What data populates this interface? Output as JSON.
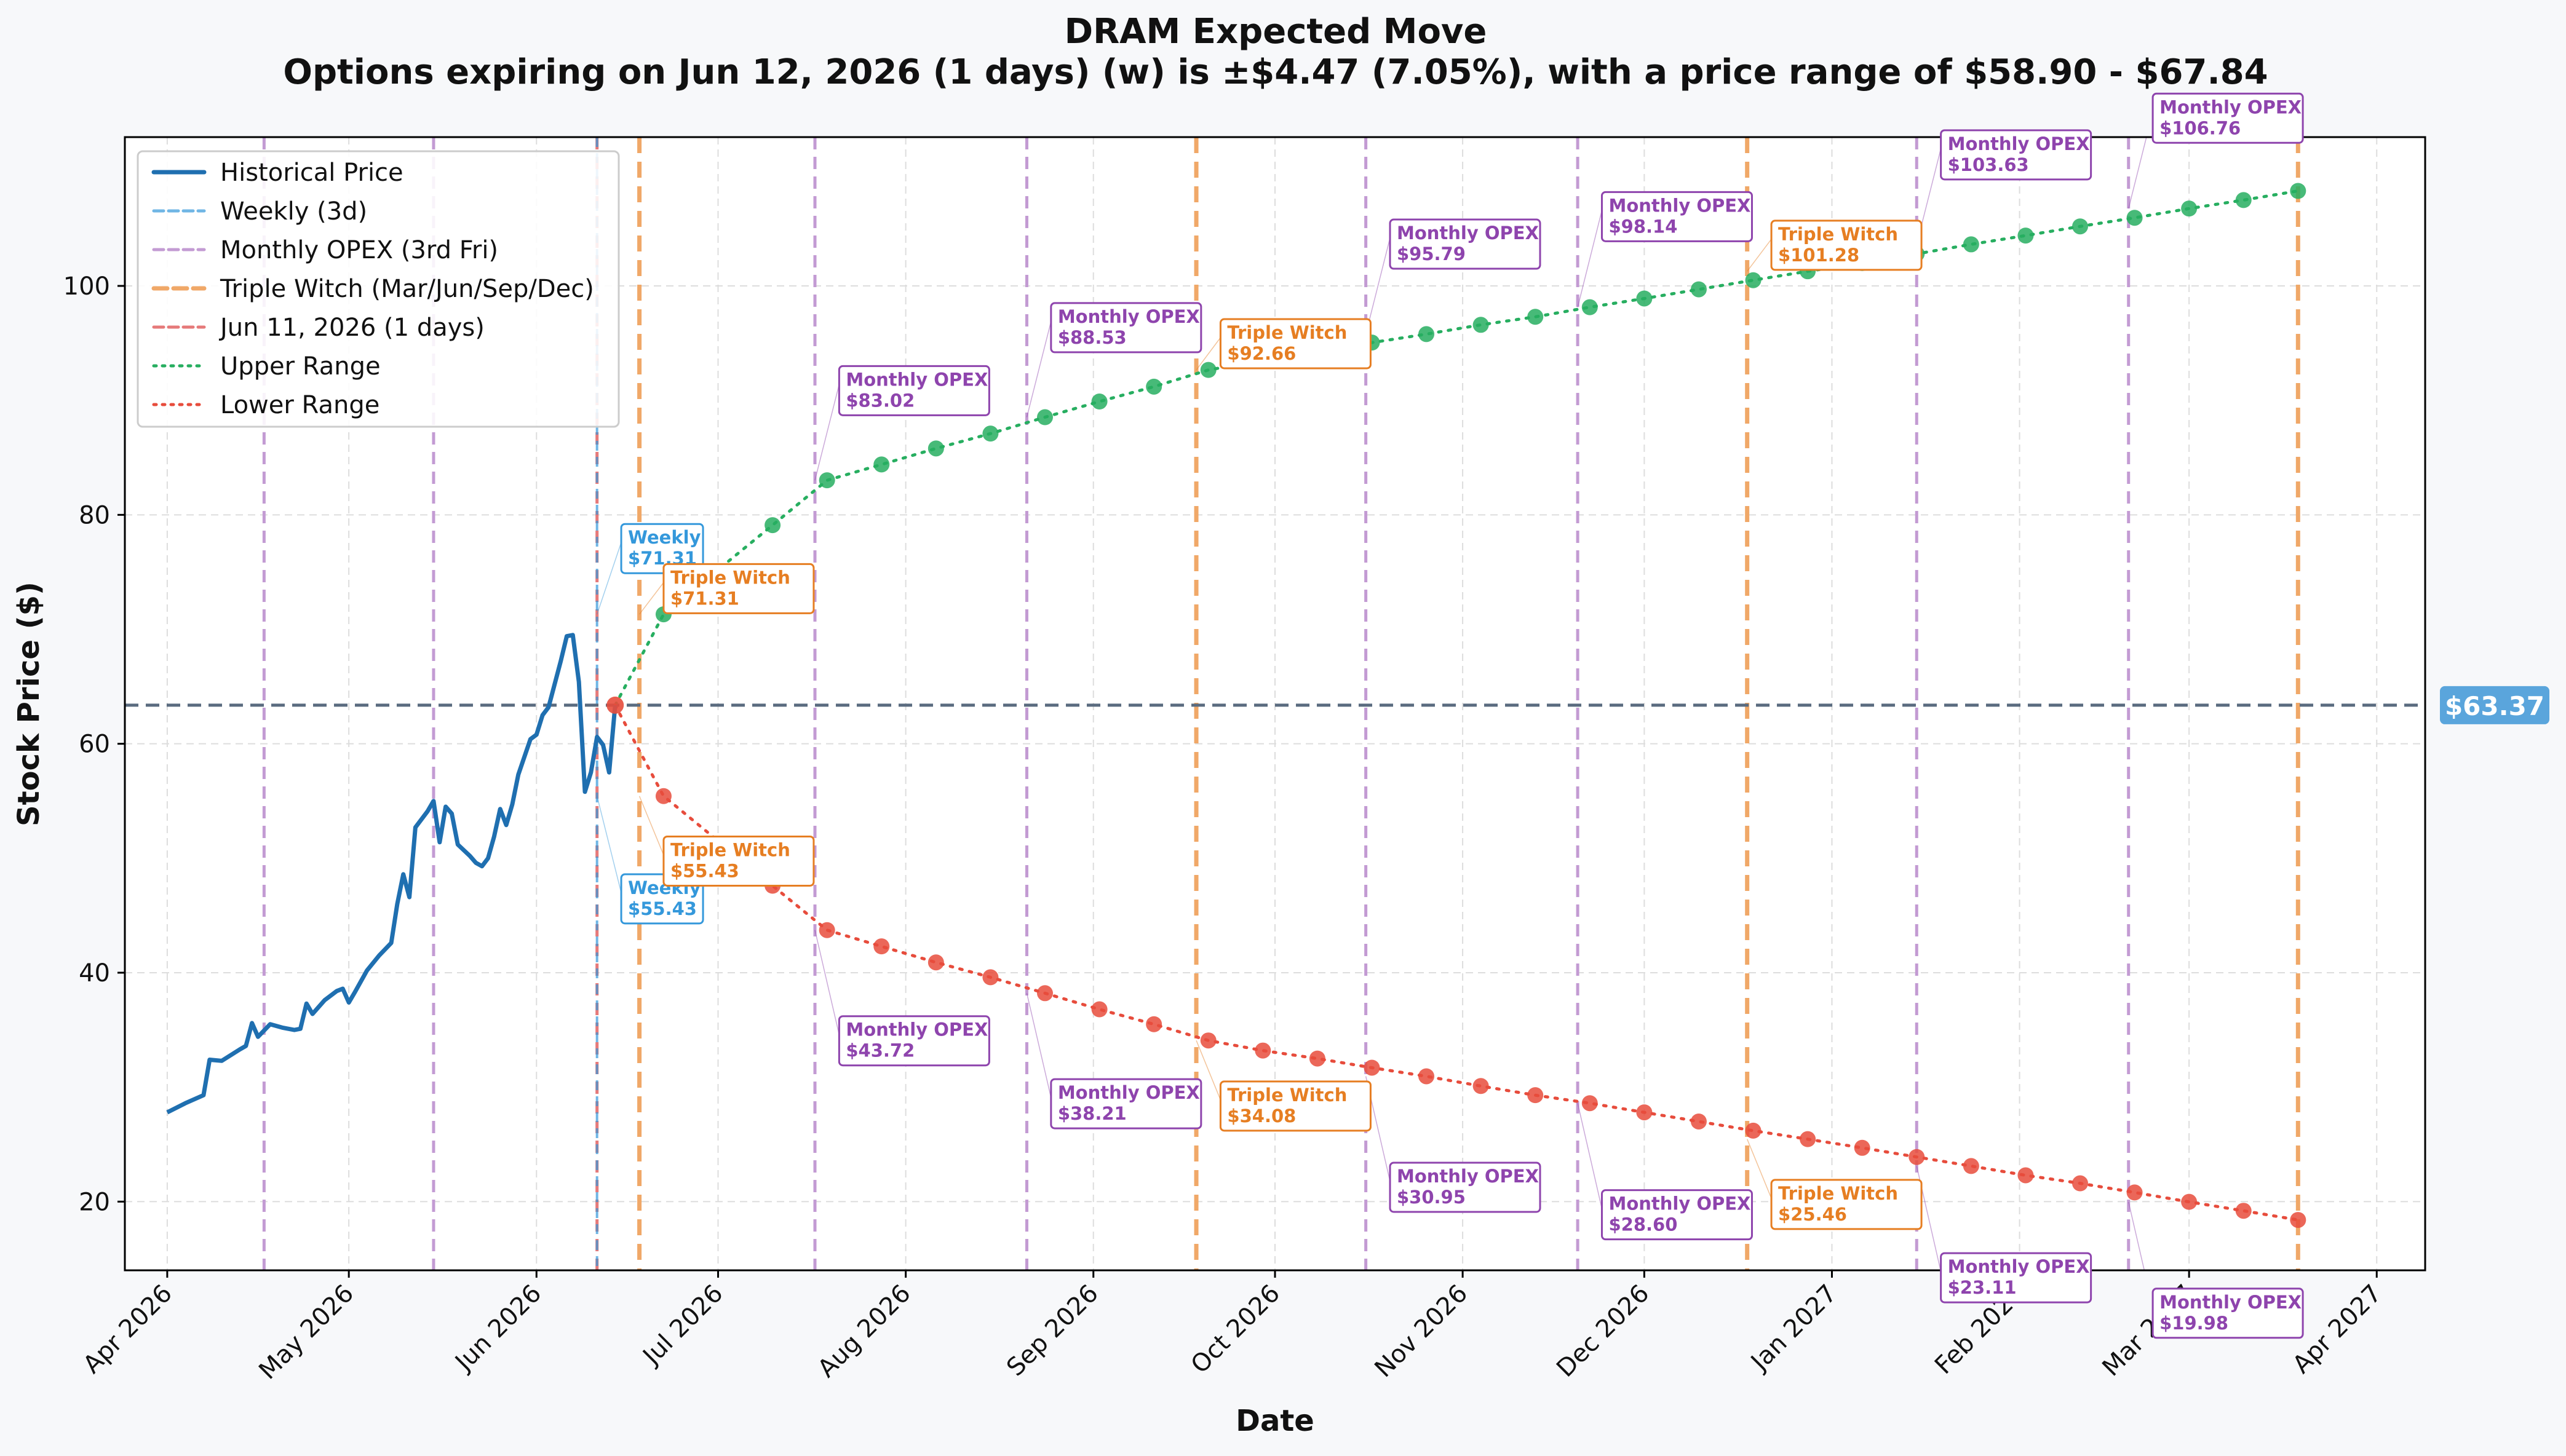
{
  "chart_data": {
    "type": "line",
    "title": "DRAM Expected Move",
    "subtitle": "Options expiring on Jun 12, 2026 (1 days) (w) is ±$4.47 (7.05%), with a price range of $58.90 - $67.84",
    "xlabel": "Date",
    "ylabel": "Stock Price ($)",
    "x_range": [
      "2026-03-25",
      "2027-04-09"
    ],
    "ylim": [
      14,
      113
    ],
    "y_ticks": [
      20,
      40,
      60,
      80,
      100
    ],
    "x_ticks": [
      {
        "date": "2026-04-01",
        "label": "Apr 2026"
      },
      {
        "date": "2026-05-01",
        "label": "May 2026"
      },
      {
        "date": "2026-06-01",
        "label": "Jun 2026"
      },
      {
        "date": "2026-07-01",
        "label": "Jul 2026"
      },
      {
        "date": "2026-08-01",
        "label": "Aug 2026"
      },
      {
        "date": "2026-09-01",
        "label": "Sep 2026"
      },
      {
        "date": "2026-10-01",
        "label": "Oct 2026"
      },
      {
        "date": "2026-11-01",
        "label": "Nov 2026"
      },
      {
        "date": "2026-12-01",
        "label": "Dec 2026"
      },
      {
        "date": "2027-01-01",
        "label": "Jan 2027"
      },
      {
        "date": "2027-02-01",
        "label": "Feb 2027"
      },
      {
        "date": "2027-03-01",
        "label": "Mar 2027"
      },
      {
        "date": "2027-04-01",
        "label": "Apr 2027"
      }
    ],
    "grid": true,
    "legend_position": "top-left",
    "current_price": 63.37,
    "current_price_label": "$63.37",
    "colors": {
      "historical": "#1f6fb0",
      "weekly": "#3498db",
      "monthly": "#8e44ad",
      "monthly_line": "#c39bd3",
      "triple": "#e67e22",
      "triple_line": "#f0a868",
      "today": "#e05a5a",
      "upper": "#27ae60",
      "lower": "#e74c3c",
      "current": "#5a6b7f",
      "current_badge": "#5aa5dc"
    },
    "legend": [
      {
        "key": "historical",
        "label": "Historical Price"
      },
      {
        "key": "weekly",
        "label": "Weekly (3d)"
      },
      {
        "key": "monthly",
        "label": "Monthly OPEX (3rd Fri)"
      },
      {
        "key": "triple",
        "label": "Triple Witch (Mar/Jun/Sep/Dec)"
      },
      {
        "key": "today",
        "label": "Jun 11, 2026 (1 days)"
      },
      {
        "key": "upper",
        "label": "Upper Range"
      },
      {
        "key": "lower",
        "label": "Lower Range"
      }
    ],
    "historical": [
      [
        "2026-04-01",
        27.8
      ],
      [
        "2026-04-04",
        28.6
      ],
      [
        "2026-04-07",
        29.3
      ],
      [
        "2026-04-08",
        32.4
      ],
      [
        "2026-04-10",
        32.3
      ],
      [
        "2026-04-13",
        33.3
      ],
      [
        "2026-04-14",
        33.6
      ],
      [
        "2026-04-15",
        35.6
      ],
      [
        "2026-04-16",
        34.4
      ],
      [
        "2026-04-18",
        35.5
      ],
      [
        "2026-04-20",
        35.2
      ],
      [
        "2026-04-21",
        35.1
      ],
      [
        "2026-04-22",
        35.0
      ],
      [
        "2026-04-23",
        35.1
      ],
      [
        "2026-04-24",
        37.3
      ],
      [
        "2026-04-25",
        36.4
      ],
      [
        "2026-04-27",
        37.6
      ],
      [
        "2026-04-29",
        38.4
      ],
      [
        "2026-04-30",
        38.6
      ],
      [
        "2026-05-01",
        37.4
      ],
      [
        "2026-05-02",
        38.3
      ],
      [
        "2026-05-04",
        40.2
      ],
      [
        "2026-05-06",
        41.5
      ],
      [
        "2026-05-08",
        42.6
      ],
      [
        "2026-05-09",
        46.0
      ],
      [
        "2026-05-10",
        48.6
      ],
      [
        "2026-05-11",
        46.6
      ],
      [
        "2026-05-12",
        52.7
      ],
      [
        "2026-05-14",
        54.1
      ],
      [
        "2026-05-15",
        55.0
      ],
      [
        "2026-05-16",
        51.4
      ],
      [
        "2026-05-17",
        54.5
      ],
      [
        "2026-05-18",
        53.9
      ],
      [
        "2026-05-19",
        51.2
      ],
      [
        "2026-05-21",
        50.2
      ],
      [
        "2026-05-22",
        49.6
      ],
      [
        "2026-05-23",
        49.3
      ],
      [
        "2026-05-24",
        50.0
      ],
      [
        "2026-05-25",
        51.9
      ],
      [
        "2026-05-26",
        54.3
      ],
      [
        "2026-05-27",
        52.9
      ],
      [
        "2026-05-28",
        54.7
      ],
      [
        "2026-05-29",
        57.3
      ],
      [
        "2026-05-31",
        60.4
      ],
      [
        "2026-06-01",
        60.8
      ],
      [
        "2026-06-02",
        62.5
      ],
      [
        "2026-06-03",
        63.2
      ],
      [
        "2026-06-05",
        67.2
      ],
      [
        "2026-06-06",
        69.4
      ],
      [
        "2026-06-07",
        69.5
      ],
      [
        "2026-06-08",
        65.4
      ],
      [
        "2026-06-09",
        55.8
      ],
      [
        "2026-06-10",
        57.5
      ],
      [
        "2026-06-11",
        60.6
      ],
      [
        "2026-06-12",
        59.9
      ],
      [
        "2026-06-13",
        57.5
      ],
      [
        "2026-06-14",
        63.37
      ]
    ],
    "upper_range": [
      [
        "2026-06-14",
        63.37
      ],
      [
        "2026-06-22",
        71.31
      ],
      [
        "2026-07-10",
        79.1
      ],
      [
        "2026-07-19",
        83.02
      ],
      [
        "2026-07-28",
        84.4
      ],
      [
        "2026-08-06",
        85.8
      ],
      [
        "2026-08-15",
        87.1
      ],
      [
        "2026-08-24",
        88.53
      ],
      [
        "2026-09-02",
        89.9
      ],
      [
        "2026-09-11",
        91.2
      ],
      [
        "2026-09-20",
        92.66
      ],
      [
        "2026-09-29",
        93.5
      ],
      [
        "2026-10-08",
        94.3
      ],
      [
        "2026-10-17",
        95.05
      ],
      [
        "2026-10-26",
        95.79
      ],
      [
        "2026-11-04",
        96.6
      ],
      [
        "2026-11-13",
        97.3
      ],
      [
        "2026-11-22",
        98.14
      ],
      [
        "2026-12-01",
        98.9
      ],
      [
        "2026-12-10",
        99.7
      ],
      [
        "2026-12-19",
        100.5
      ],
      [
        "2026-12-28",
        101.28
      ],
      [
        "2027-01-06",
        102.0
      ],
      [
        "2027-01-15",
        102.8
      ],
      [
        "2027-01-24",
        103.63
      ],
      [
        "2027-02-02",
        104.4
      ],
      [
        "2027-02-11",
        105.2
      ],
      [
        "2027-02-20",
        105.95
      ],
      [
        "2027-03-01",
        106.76
      ],
      [
        "2027-03-10",
        107.5
      ],
      [
        "2027-03-19",
        108.3
      ]
    ],
    "lower_range": [
      [
        "2026-06-14",
        63.37
      ],
      [
        "2026-06-22",
        55.43
      ],
      [
        "2026-07-10",
        47.6
      ],
      [
        "2026-07-19",
        43.72
      ],
      [
        "2026-07-28",
        42.3
      ],
      [
        "2026-08-06",
        40.9
      ],
      [
        "2026-08-15",
        39.6
      ],
      [
        "2026-08-24",
        38.21
      ],
      [
        "2026-09-02",
        36.8
      ],
      [
        "2026-09-11",
        35.5
      ],
      [
        "2026-09-20",
        34.08
      ],
      [
        "2026-09-29",
        33.2
      ],
      [
        "2026-10-08",
        32.5
      ],
      [
        "2026-10-17",
        31.7
      ],
      [
        "2026-10-26",
        30.95
      ],
      [
        "2026-11-04",
        30.1
      ],
      [
        "2026-11-13",
        29.3
      ],
      [
        "2026-11-22",
        28.6
      ],
      [
        "2026-12-01",
        27.8
      ],
      [
        "2026-12-10",
        27.0
      ],
      [
        "2026-12-19",
        26.2
      ],
      [
        "2026-12-28",
        25.46
      ],
      [
        "2027-01-06",
        24.7
      ],
      [
        "2027-01-15",
        23.9
      ],
      [
        "2027-01-24",
        23.11
      ],
      [
        "2027-02-02",
        22.3
      ],
      [
        "2027-02-11",
        21.6
      ],
      [
        "2027-02-20",
        20.8
      ],
      [
        "2027-03-01",
        19.98
      ],
      [
        "2027-03-10",
        19.2
      ],
      [
        "2027-03-19",
        18.4
      ]
    ],
    "vlines": [
      {
        "date": "2026-04-17",
        "kind": "monthly"
      },
      {
        "date": "2026-05-15",
        "kind": "monthly"
      },
      {
        "date": "2026-06-11",
        "kind": "today"
      },
      {
        "date": "2026-06-11",
        "kind": "weekly"
      },
      {
        "date": "2026-06-18",
        "kind": "triple"
      },
      {
        "date": "2026-07-17",
        "kind": "monthly"
      },
      {
        "date": "2026-08-21",
        "kind": "monthly"
      },
      {
        "date": "2026-09-18",
        "kind": "triple"
      },
      {
        "date": "2026-10-16",
        "kind": "monthly"
      },
      {
        "date": "2026-11-20",
        "kind": "monthly"
      },
      {
        "date": "2026-12-18",
        "kind": "triple"
      },
      {
        "date": "2027-01-15",
        "kind": "monthly"
      },
      {
        "date": "2027-02-19",
        "kind": "monthly"
      },
      {
        "date": "2027-03-19",
        "kind": "triple"
      }
    ],
    "annotations": [
      {
        "kind": "weekly",
        "line1": "Weekly",
        "line2": "$71.31",
        "point": [
          "2026-06-11",
          71.31
        ],
        "label_at": [
          "2026-06-15",
          79.2
        ]
      },
      {
        "kind": "weekly",
        "line1": "Weekly",
        "line2": "$55.43",
        "point": [
          "2026-06-11",
          55.43
        ],
        "label_at": [
          "2026-06-15",
          48.6
        ]
      },
      {
        "kind": "triple",
        "line1": "Triple Witch",
        "line2": "$71.31",
        "point": [
          "2026-06-18",
          71.31
        ],
        "label_at": [
          "2026-06-22",
          75.7
        ]
      },
      {
        "kind": "triple",
        "line1": "Triple Witch",
        "line2": "$55.43",
        "point": [
          "2026-06-18",
          55.43
        ],
        "label_at": [
          "2026-06-22",
          51.9
        ]
      },
      {
        "kind": "monthly",
        "line1": "Monthly OPEX",
        "line2": "$83.02",
        "point": [
          "2026-07-17",
          83.02
        ],
        "label_at": [
          "2026-07-21",
          93.0
        ]
      },
      {
        "kind": "monthly",
        "line1": "Monthly OPEX",
        "line2": "$43.72",
        "point": [
          "2026-07-17",
          43.72
        ],
        "label_at": [
          "2026-07-21",
          36.2
        ]
      },
      {
        "kind": "monthly",
        "line1": "Monthly OPEX",
        "line2": "$88.53",
        "point": [
          "2026-08-21",
          88.53
        ],
        "label_at": [
          "2026-08-25",
          98.5
        ]
      },
      {
        "kind": "monthly",
        "line1": "Monthly OPEX",
        "line2": "$38.21",
        "point": [
          "2026-08-21",
          38.21
        ],
        "label_at": [
          "2026-08-25",
          30.7
        ]
      },
      {
        "kind": "triple",
        "line1": "Triple Witch",
        "line2": "$92.66",
        "point": [
          "2026-09-18",
          92.66
        ],
        "label_at": [
          "2026-09-22",
          97.1
        ]
      },
      {
        "kind": "triple",
        "line1": "Triple Witch",
        "line2": "$34.08",
        "point": [
          "2026-09-18",
          34.08
        ],
        "label_at": [
          "2026-09-22",
          30.5
        ]
      },
      {
        "kind": "monthly",
        "line1": "Monthly OPEX",
        "line2": "$95.79",
        "point": [
          "2026-10-16",
          95.79
        ],
        "label_at": [
          "2026-10-20",
          105.8
        ]
      },
      {
        "kind": "monthly",
        "line1": "Monthly OPEX",
        "line2": "$30.95",
        "point": [
          "2026-10-16",
          30.95
        ],
        "label_at": [
          "2026-10-20",
          23.4
        ]
      },
      {
        "kind": "monthly",
        "line1": "Monthly OPEX",
        "line2": "$98.14",
        "point": [
          "2026-11-20",
          98.14
        ],
        "label_at": [
          "2026-11-24",
          108.2
        ]
      },
      {
        "kind": "monthly",
        "line1": "Monthly OPEX",
        "line2": "$28.60",
        "point": [
          "2026-11-20",
          28.6
        ],
        "label_at": [
          "2026-11-24",
          21.0
        ]
      },
      {
        "kind": "triple",
        "line1": "Triple Witch",
        "line2": "$101.28",
        "point": [
          "2026-12-18",
          101.28
        ],
        "label_at": [
          "2026-12-22",
          105.7
        ]
      },
      {
        "kind": "triple",
        "line1": "Triple Witch",
        "line2": "$25.46",
        "point": [
          "2026-12-18",
          25.46
        ],
        "label_at": [
          "2026-12-22",
          21.9
        ]
      },
      {
        "kind": "monthly",
        "line1": "Monthly OPEX",
        "line2": "$103.63",
        "point": [
          "2027-01-15",
          103.63
        ],
        "label_at": [
          "2027-01-19",
          113.6
        ]
      },
      {
        "kind": "monthly",
        "line1": "Monthly OPEX",
        "line2": "$23.11",
        "point": [
          "2027-01-15",
          23.11
        ],
        "label_at": [
          "2027-01-19",
          15.5
        ]
      },
      {
        "kind": "monthly",
        "line1": "Monthly OPEX",
        "line2": "$106.76",
        "point": [
          "2027-02-19",
          106.76
        ],
        "label_at": [
          "2027-02-23",
          116.8
        ]
      },
      {
        "kind": "monthly",
        "line1": "Monthly OPEX",
        "line2": "$19.98",
        "point": [
          "2027-02-19",
          19.98
        ],
        "label_at": [
          "2027-02-23",
          12.4
        ]
      }
    ]
  }
}
